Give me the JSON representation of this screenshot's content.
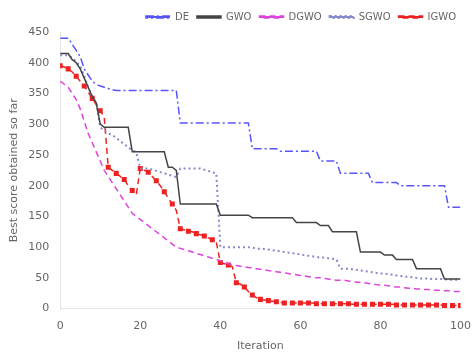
{
  "chart_data": {
    "type": "line",
    "xlabel": "Iteration",
    "ylabel": "Best score obtained so far",
    "xlim": [
      0,
      100
    ],
    "ylim": [
      0,
      450
    ],
    "xticks": [
      0,
      20,
      40,
      60,
      80,
      100
    ],
    "yticks": [
      0,
      50,
      100,
      150,
      200,
      250,
      300,
      350,
      400,
      450
    ],
    "grid": false,
    "legend": "upper right",
    "x": [
      0,
      1,
      2,
      3,
      4,
      5,
      6,
      7,
      8,
      9,
      10,
      11,
      12,
      13,
      14,
      15,
      16,
      17,
      18,
      19,
      20,
      21,
      22,
      23,
      24,
      25,
      26,
      27,
      28,
      29,
      30,
      31,
      32,
      33,
      34,
      35,
      36,
      37,
      38,
      39,
      40,
      41,
      42,
      43,
      44,
      45,
      46,
      47,
      48,
      49,
      50,
      51,
      52,
      53,
      54,
      55,
      56,
      57,
      58,
      59,
      60,
      61,
      62,
      63,
      64,
      65,
      66,
      67,
      68,
      69,
      70,
      71,
      72,
      73,
      74,
      75,
      76,
      77,
      78,
      79,
      80,
      81,
      82,
      83,
      84,
      85,
      86,
      87,
      88,
      89,
      90,
      91,
      92,
      93,
      94,
      95,
      96,
      97,
      98,
      99,
      100
    ],
    "series": [
      {
        "name": "DE",
        "color": "#5555ff",
        "line_style": "dashdot",
        "values": [
          440,
          440,
          440,
          430,
          420,
          410,
          390,
          380,
          370,
          365,
          362,
          360,
          358,
          356,
          355,
          355,
          355,
          355,
          355,
          355,
          355,
          355,
          355,
          355,
          355,
          355,
          355,
          355,
          355,
          355,
          302,
          302,
          302,
          302,
          302,
          302,
          302,
          302,
          302,
          302,
          302,
          302,
          302,
          302,
          302,
          302,
          302,
          302,
          260,
          260,
          260,
          260,
          260,
          260,
          260,
          256,
          256,
          256,
          256,
          256,
          256,
          256,
          256,
          256,
          256,
          240,
          240,
          240,
          240,
          240,
          220,
          220,
          220,
          220,
          220,
          220,
          220,
          220,
          205,
          205,
          205,
          205,
          205,
          205,
          205,
          200,
          200,
          200,
          200,
          200,
          200,
          200,
          200,
          200,
          200,
          200,
          200,
          165,
          165,
          165,
          165
        ]
      },
      {
        "name": "GWO",
        "color": "#444444",
        "line_style": "solid",
        "values": [
          415,
          415,
          415,
          405,
          400,
          390,
          375,
          360,
          345,
          335,
          300,
          295,
          295,
          295,
          295,
          295,
          295,
          295,
          255,
          255,
          255,
          255,
          255,
          255,
          255,
          255,
          255,
          230,
          230,
          225,
          170,
          170,
          170,
          170,
          170,
          170,
          170,
          170,
          170,
          170,
          152,
          152,
          152,
          152,
          152,
          152,
          152,
          152,
          148,
          148,
          148,
          148,
          148,
          148,
          148,
          148,
          148,
          148,
          148,
          140,
          140,
          140,
          140,
          140,
          140,
          135,
          135,
          135,
          125,
          125,
          125,
          125,
          125,
          125,
          125,
          92,
          92,
          92,
          92,
          92,
          92,
          87,
          87,
          87,
          80,
          80,
          80,
          80,
          80,
          65,
          65,
          65,
          65,
          65,
          65,
          65,
          48,
          48,
          48,
          48,
          48
        ]
      },
      {
        "name": "DGWO",
        "color": "#dd44dd",
        "line_style": "dashed",
        "values": [
          370,
          365,
          360,
          350,
          340,
          325,
          305,
          285,
          270,
          255,
          240,
          225,
          215,
          205,
          195,
          185,
          175,
          165,
          155,
          150,
          145,
          140,
          135,
          130,
          125,
          120,
          115,
          110,
          105,
          100,
          98,
          96,
          94,
          92,
          90,
          88,
          86,
          84,
          82,
          80,
          78,
          75,
          73,
          71,
          70,
          69,
          68,
          67,
          66,
          65,
          64,
          63,
          62,
          61,
          60,
          59,
          58,
          57,
          56,
          55,
          54,
          53,
          52,
          51,
          50,
          50,
          49,
          48,
          47,
          46,
          46,
          46,
          45,
          44,
          43,
          43,
          42,
          41,
          40,
          39,
          38,
          38,
          37,
          36,
          35,
          35,
          34,
          33,
          33,
          32,
          32,
          31,
          31,
          30,
          30,
          30,
          29,
          29,
          28,
          28,
          28
        ]
      },
      {
        "name": "SGWO",
        "color": "#8888cc",
        "line_style": "dotted",
        "values": [
          412,
          412,
          412,
          408,
          402,
          395,
          378,
          360,
          345,
          335,
          295,
          290,
          285,
          282,
          278,
          272,
          268,
          262,
          258,
          254,
          228,
          228,
          228,
          226,
          224,
          222,
          220,
          218,
          216,
          214,
          228,
          228,
          228,
          228,
          228,
          228,
          226,
          224,
          222,
          220,
          100,
          100,
          100,
          100,
          100,
          100,
          100,
          100,
          99,
          98,
          97,
          97,
          96,
          95,
          94,
          93,
          92,
          91,
          90,
          89,
          88,
          87,
          86,
          85,
          84,
          83,
          83,
          82,
          81,
          80,
          65,
          65,
          65,
          64,
          63,
          62,
          61,
          60,
          59,
          58,
          57,
          57,
          56,
          55,
          54,
          53,
          52,
          52,
          51,
          50,
          49,
          49,
          49,
          48,
          48,
          48,
          48,
          47,
          47,
          47,
          47
        ]
      },
      {
        "name": "IGWO",
        "color": "#ee2222",
        "line_style": "dashed",
        "marker": "square",
        "values": [
          395,
          393,
          390,
          385,
          378,
          370,
          362,
          352,
          342,
          332,
          322,
          312,
          230,
          225,
          220,
          215,
          210,
          200,
          192,
          185,
          228,
          225,
          222,
          215,
          208,
          200,
          190,
          180,
          170,
          160,
          130,
          128,
          126,
          125,
          122,
          120,
          118,
          115,
          112,
          108,
          75,
          73,
          71,
          68,
          42,
          40,
          35,
          28,
          22,
          18,
          15,
          14,
          13,
          12,
          11,
          10,
          9,
          9,
          9,
          9,
          9,
          9,
          9,
          9,
          8,
          8,
          8,
          8,
          8,
          8,
          8,
          8,
          8,
          7,
          7,
          7,
          7,
          7,
          7,
          7,
          7,
          7,
          7,
          7,
          6,
          6,
          6,
          6,
          6,
          6,
          6,
          6,
          6,
          6,
          6,
          6,
          5,
          5,
          5,
          5,
          5
        ]
      }
    ]
  }
}
